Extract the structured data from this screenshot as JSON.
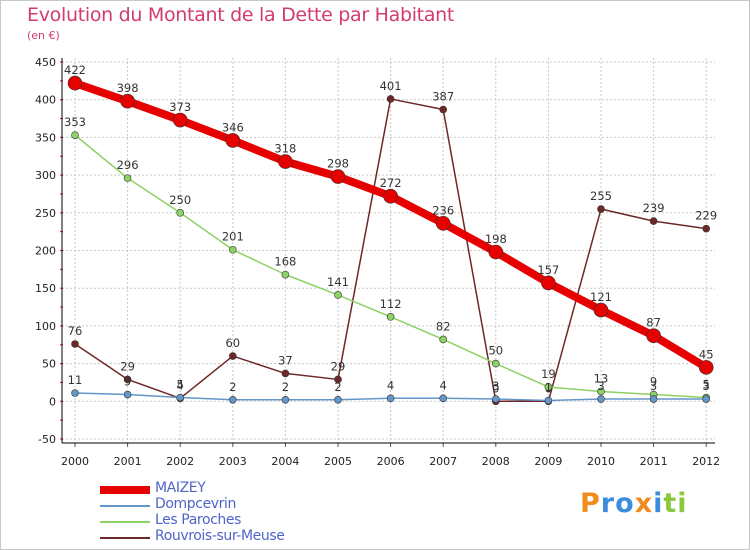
{
  "header": {
    "title": "Evolution du Montant de la Dette par Habitant",
    "unit": "(en €)"
  },
  "colors": {
    "grid": "#c8c8c8",
    "axis": "#000000",
    "title": "#d23c6e",
    "legend_text": "#4f64c8"
  },
  "chart_data": {
    "type": "line",
    "title": "Evolution du Montant de la Dette par Habitant",
    "subtitle": "(en €)",
    "xlabel": "",
    "ylabel": "",
    "x": [
      "2000",
      "2001",
      "2002",
      "2003",
      "2004",
      "2005",
      "2006",
      "2007",
      "2008",
      "2009",
      "2010",
      "2011",
      "2012"
    ],
    "ylim": [
      -50,
      450
    ],
    "yticks": [
      -50,
      0,
      50,
      100,
      150,
      200,
      250,
      300,
      350,
      400,
      450
    ],
    "grid": true,
    "legend_position": "bottom-left",
    "series": [
      {
        "name": "MAIZEY",
        "color": "#e60000",
        "values": [
          422,
          398,
          373,
          346,
          318,
          298,
          272,
          236,
          198,
          157,
          121,
          87,
          45
        ]
      },
      {
        "name": "Dompcevrin",
        "color": "#6496c8",
        "values": [
          11,
          9,
          5,
          2,
          2,
          2,
          4,
          4,
          3,
          1,
          3,
          3,
          3
        ]
      },
      {
        "name": "Les Paroches",
        "color": "#8cd264",
        "values": [
          353,
          296,
          250,
          201,
          168,
          141,
          112,
          82,
          50,
          19,
          13,
          9,
          5
        ]
      },
      {
        "name": "Rouvrois-sur-Meuse",
        "color": "#6e2828",
        "values": [
          76,
          29,
          4,
          60,
          37,
          29,
          401,
          387,
          0,
          0,
          255,
          239,
          229
        ]
      }
    ]
  },
  "brand": {
    "letters": [
      {
        "ch": "P",
        "color": "#f08c1e"
      },
      {
        "ch": "r",
        "color": "#3c8cdc"
      },
      {
        "ch": "o",
        "color": "#3c8cdc"
      },
      {
        "ch": "x",
        "color": "#f08c1e"
      },
      {
        "ch": "i",
        "color": "#3c8cdc"
      },
      {
        "ch": "t",
        "color": "#8cc83c"
      },
      {
        "ch": "i",
        "color": "#8cc83c"
      }
    ]
  }
}
